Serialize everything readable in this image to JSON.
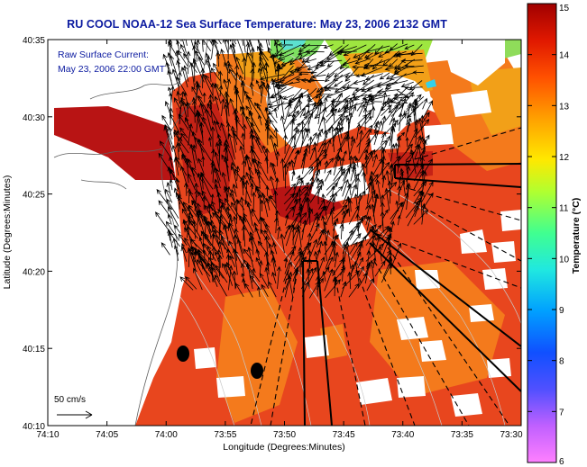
{
  "title": "RU COOL  NOAA-12  Sea Surface Temperature:  May 23, 2006 2132 GMT",
  "annotation": {
    "line1": "Raw Surface Current:",
    "line2": "May 23, 2006 22:00 GMT"
  },
  "scale_label": "50 cm/s",
  "x_axis": {
    "label": "Longitude (Degrees:Minutes)",
    "ticks": [
      "74:10",
      "74:05",
      "74:00",
      "73:55",
      "73:50",
      "73:45",
      "73:40",
      "73:35",
      "73:30"
    ]
  },
  "y_axis": {
    "label": "Latitude (Degrees:Minutes)",
    "ticks": [
      "40:35",
      "40:30",
      "40:25",
      "40:20",
      "40:15",
      "40:10"
    ]
  },
  "colorbar": {
    "label": "Temperature (°C)",
    "ticks": [
      "15",
      "14",
      "13",
      "12",
      "11",
      "10",
      "9",
      "8",
      "7",
      "6"
    ],
    "min": 6,
    "max": 15,
    "colors": [
      "#ff7fff",
      "#a050ff",
      "#2020ff",
      "#0080ff",
      "#20e0ff",
      "#40ff90",
      "#c0ff20",
      "#ffe000",
      "#ff9000",
      "#ff3000",
      "#c00000"
    ]
  },
  "colors": {
    "water_main": "#e8461e",
    "water_warm": "#b81414",
    "water_orange": "#f47a1c",
    "water_cool": "#f2a018",
    "water_green": "#7de060",
    "water_cyan": "#5ce0d0",
    "title_blue": "#0b1aa0"
  }
}
